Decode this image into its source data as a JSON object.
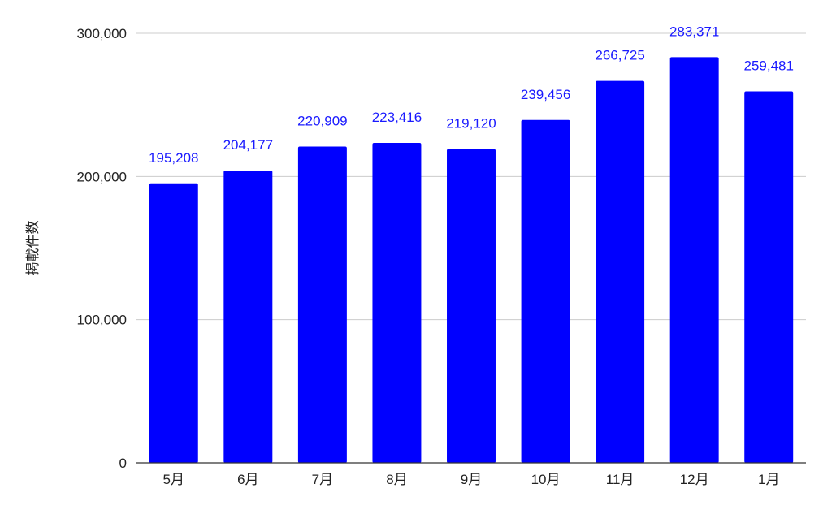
{
  "chart_data": {
    "type": "bar",
    "title": "",
    "xlabel": "",
    "ylabel": "掲載件数",
    "categories": [
      "5月",
      "6月",
      "7月",
      "8月",
      "9月",
      "10月",
      "11月",
      "12月",
      "1月"
    ],
    "values": [
      195208,
      204177,
      220909,
      223416,
      219120,
      239456,
      266725,
      283371,
      259481
    ],
    "data_labels": [
      "195,208",
      "204,177",
      "220,909",
      "223,416",
      "219,120",
      "239,456",
      "266,725",
      "283,371",
      "259,481"
    ],
    "ylim": [
      0,
      300000
    ],
    "yticks": [
      0,
      100000,
      200000,
      300000
    ],
    "ytick_labels": [
      "0",
      "100,000",
      "200,000",
      "300,000"
    ],
    "grid": true,
    "legend": "none",
    "colors": {
      "bar": "#0000ff",
      "data_label": "#1a1aff"
    }
  }
}
